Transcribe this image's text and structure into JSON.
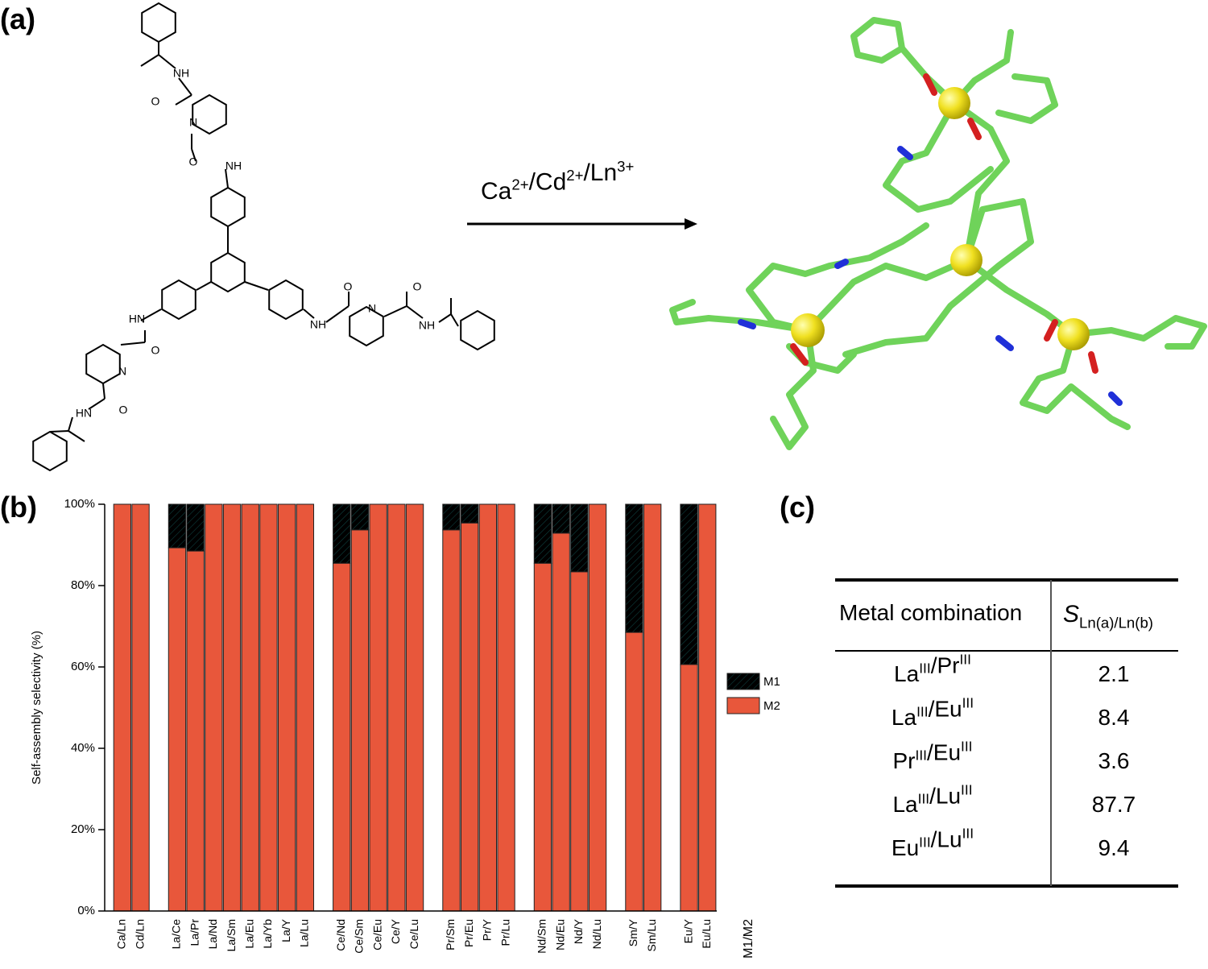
{
  "panel_labels": [
    "(a)",
    "(b)",
    "(c)"
  ],
  "structure": {
    "atom_labels": [
      "NH",
      "O",
      "N",
      "O",
      "NH",
      "HN",
      "O",
      "N",
      "O",
      "HN",
      "NH",
      "O",
      "N",
      "O",
      "NH"
    ]
  },
  "reaction": [
    {
      "base": "Ca",
      "sup": "2+"
    },
    {
      "base": "/Cd",
      "sup": "2+"
    },
    {
      "base": "/Ln",
      "sup": "3+"
    }
  ],
  "chart_data": {
    "type": "bar",
    "stacked": true,
    "categories": [
      "Ca/Ln",
      "Cd/Ln",
      null,
      "La/Ce",
      "La/Pr",
      "La/Nd",
      "La/Sm",
      "La/Eu",
      "La/Yb",
      "La/Y",
      "La/Lu",
      null,
      "Ce/Nd",
      "Ce/Sm",
      "Ce/Eu",
      "Ce/Y",
      "Ce/Lu",
      null,
      "Pr/Sm",
      "Pr/Eu",
      "Pr/Y",
      "Pr/Lu",
      null,
      "Nd/Sm",
      "Nd/Eu",
      "Nd/Y",
      "Nd/Lu",
      null,
      "Sm/Y",
      "Sm/Lu",
      null,
      "Eu/Y",
      "Eu/Lu"
    ],
    "series": [
      {
        "name": "M1",
        "color": "#1f7a78",
        "hatch": true,
        "values": [
          0,
          0,
          null,
          10.7,
          11.5,
          0,
          0,
          0,
          0,
          0,
          0,
          null,
          14.5,
          6.3,
          0,
          0,
          0,
          null,
          6.3,
          4.6,
          0,
          0,
          null,
          14.5,
          7.1,
          16.6,
          0,
          null,
          31.5,
          0,
          null,
          39.4,
          0
        ]
      },
      {
        "name": "M2",
        "color": "#e8573b",
        "values": [
          100,
          100,
          null,
          89.3,
          88.5,
          100,
          100,
          100,
          100,
          100,
          100,
          null,
          85.5,
          93.7,
          100,
          100,
          100,
          null,
          93.7,
          95.4,
          100,
          100,
          null,
          85.5,
          92.9,
          83.4,
          100,
          null,
          68.5,
          100,
          null,
          60.6,
          100
        ]
      }
    ],
    "ylabel": "Self-assembly selectivity  (%)",
    "xlabel": "M1/M2",
    "ylim": [
      0,
      100
    ],
    "yticks": [
      {
        "value": 0,
        "label": "0%"
      },
      {
        "value": 20,
        "label": "20%"
      },
      {
        "value": 40,
        "label": "40%"
      },
      {
        "value": 60,
        "label": "60%"
      },
      {
        "value": 80,
        "label": "80%"
      },
      {
        "value": 100,
        "label": "100%"
      }
    ],
    "legend": "right"
  },
  "table": {
    "header": [
      "Metal combination",
      {
        "base": "S",
        "sub": "Ln(a)/Ln(b)"
      }
    ],
    "rows": [
      {
        "pair": [
          {
            "base": "La",
            "sup": "III"
          },
          {
            "base": "/Pr",
            "sup": "III"
          }
        ],
        "value": 2.1
      },
      {
        "pair": [
          {
            "base": "La",
            "sup": "III"
          },
          {
            "base": "/Eu",
            "sup": "III"
          }
        ],
        "value": 8.4
      },
      {
        "pair": [
          {
            "base": "Pr",
            "sup": "III"
          },
          {
            "base": "/Eu",
            "sup": "III"
          }
        ],
        "value": 3.6
      },
      {
        "pair": [
          {
            "base": "La",
            "sup": "III"
          },
          {
            "base": "/Lu",
            "sup": "III"
          }
        ],
        "value": 87.7
      },
      {
        "pair": [
          {
            "base": "Eu",
            "sup": "III"
          },
          {
            "base": "/Lu",
            "sup": "III"
          }
        ],
        "value": 9.4
      }
    ]
  }
}
